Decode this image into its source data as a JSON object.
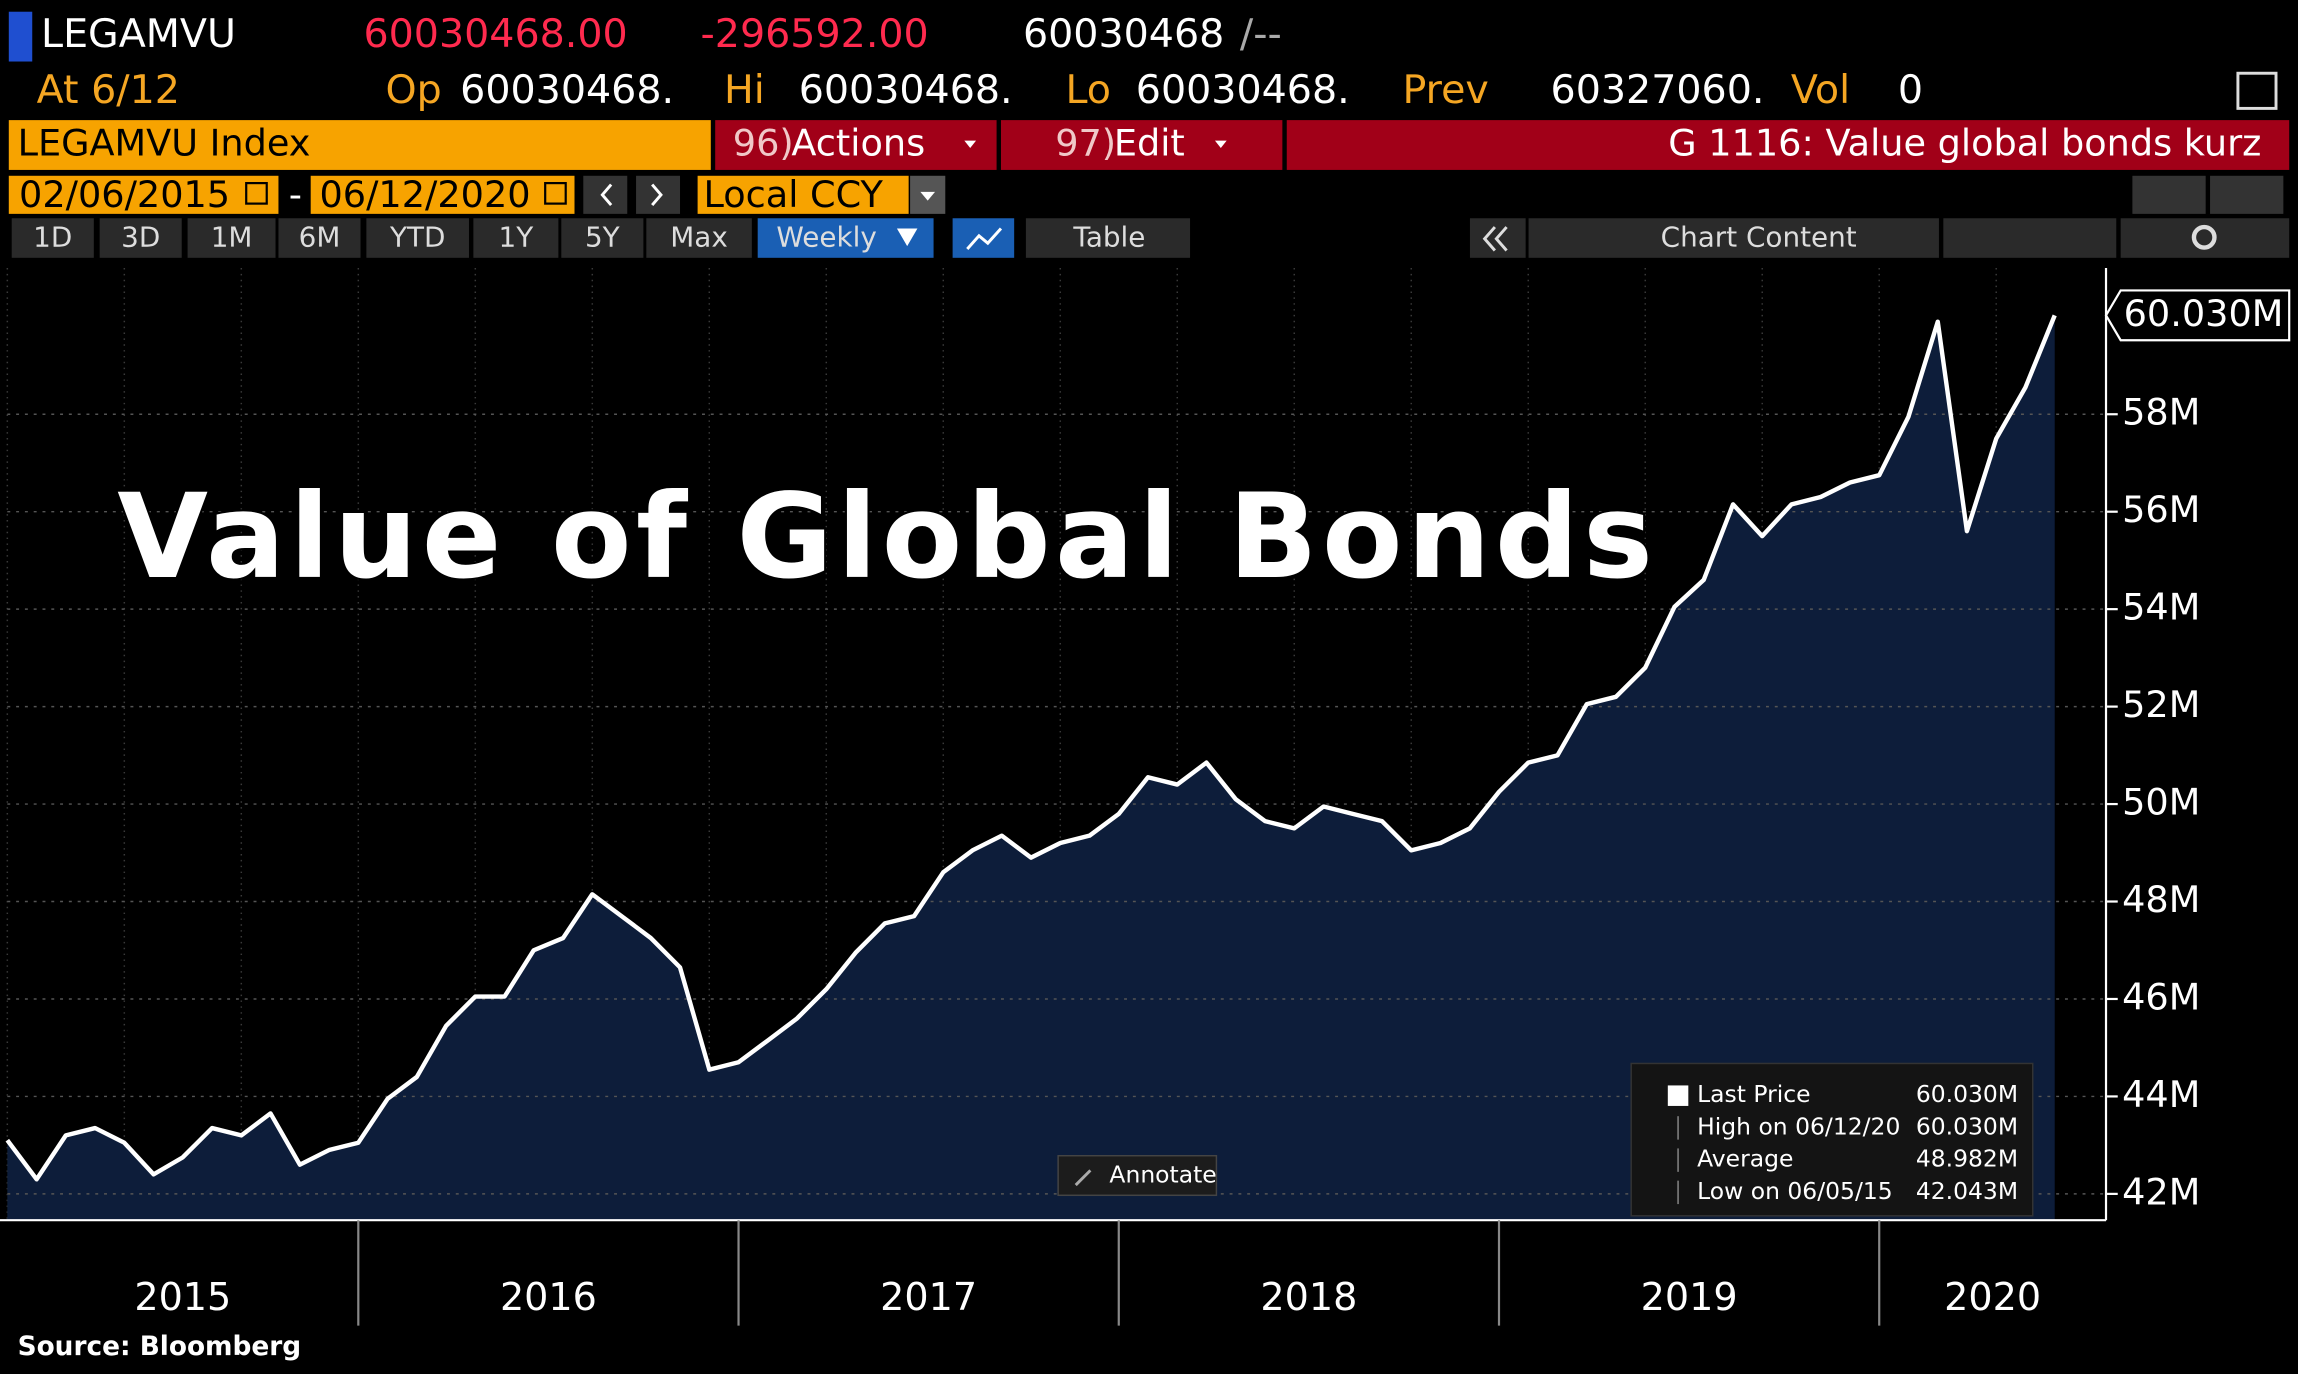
{
  "header": {
    "ticker": "LEGAMVU",
    "last": "60030468.00",
    "change": "-296592.00",
    "value": "60030468",
    "sep": "/--",
    "at": "At 6/12",
    "op_label": "Op",
    "op": "60030468.",
    "hi_label": "Hi",
    "hi": "60030468.",
    "lo_label": "Lo",
    "lo": "60030468.",
    "prev_label": "Prev",
    "prev": "60327060.",
    "vol_label": "Vol",
    "vol": "0"
  },
  "toolbar": {
    "security": "LEGAMVU Index",
    "actions_num": "96)",
    "actions": "Actions",
    "edit_num": "97)",
    "edit": "Edit",
    "function": "G 1116: Value global bonds kurz"
  },
  "range": {
    "start": "02/06/2015",
    "dash": "-",
    "end": "06/12/2020",
    "currency": "Local CCY"
  },
  "tabs": [
    "1D",
    "3D",
    "1M",
    "6M",
    "YTD",
    "1Y",
    "5Y",
    "Max",
    "Weekly"
  ],
  "table": "Table",
  "chart_content": "Chart Content",
  "chart_data": {
    "type": "area",
    "title": "Value of Global Bonds",
    "categories": [
      "2015",
      null,
      null,
      null,
      null,
      null,
      null,
      null,
      null,
      null,
      null,
      null,
      "2016",
      null,
      null,
      null,
      null,
      null,
      null,
      null,
      null,
      null,
      null,
      null,
      null,
      "2017",
      null,
      null,
      null,
      null,
      null,
      null,
      null,
      null,
      null,
      null,
      null,
      null,
      "2018",
      null,
      null,
      null,
      null,
      null,
      null,
      null,
      null,
      null,
      null,
      null,
      null,
      "2019",
      null,
      null,
      null,
      null,
      null,
      null,
      null,
      null,
      null,
      null,
      null,
      null,
      "2020",
      null,
      null,
      null,
      null,
      null,
      null
    ],
    "series": [
      {
        "name": "Last Price",
        "color": "#ffffff",
        "fill": "#0d1d3a",
        "values": [
          43.1,
          42.3,
          43.2,
          43.35,
          43.05,
          42.4,
          42.75,
          43.35,
          43.2,
          43.65,
          42.6,
          42.9,
          43.05,
          43.95,
          44.4,
          45.45,
          46.05,
          46.05,
          47.0,
          47.25,
          48.15,
          47.7,
          47.25,
          46.65,
          44.55,
          44.7,
          45.15,
          45.6,
          46.2,
          46.95,
          47.55,
          47.7,
          48.6,
          49.05,
          49.35,
          48.9,
          49.2,
          49.35,
          49.8,
          50.55,
          50.4,
          50.85,
          50.1,
          49.65,
          49.5,
          49.95,
          49.8,
          49.65,
          49.05,
          49.2,
          49.5,
          50.25,
          50.85,
          51.0,
          52.05,
          52.2,
          52.8,
          54.05,
          54.6,
          56.15,
          55.5,
          56.15,
          56.3,
          56.6,
          56.75,
          57.95,
          59.9,
          55.6,
          57.5,
          58.55,
          60.03
        ]
      }
    ],
    "last_label": "60.030M",
    "ylim": [
      41.46,
      61.0
    ],
    "yticks": [
      {
        "value": 42,
        "label": "42M"
      },
      {
        "value": 44,
        "label": "44M"
      },
      {
        "value": 46,
        "label": "46M"
      },
      {
        "value": 48,
        "label": "48M"
      },
      {
        "value": 50,
        "label": "50M"
      },
      {
        "value": 52,
        "label": "52M"
      },
      {
        "value": 54,
        "label": "54M"
      },
      {
        "value": 56,
        "label": "56M"
      },
      {
        "value": 58,
        "label": "58M"
      }
    ],
    "grid": true,
    "legend": [
      {
        "label": "Last Price",
        "value": "60.030M"
      },
      {
        "label": "High on 06/12/20",
        "value": "60.030M"
      },
      {
        "label": "Average",
        "value": "48.982M"
      },
      {
        "label": "Low on 06/05/15",
        "value": "42.043M"
      }
    ],
    "annotate": "Annotate",
    "source": "Source: Bloomberg"
  }
}
